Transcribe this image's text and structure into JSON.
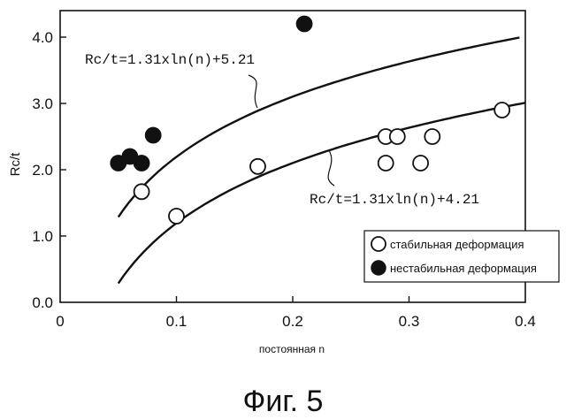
{
  "chart_data": {
    "type": "scatter",
    "xlabel": "постоянная n",
    "ylabel": "Rc/t",
    "xlim": [
      0,
      0.4
    ],
    "ylim": [
      0,
      4.4
    ],
    "x_ticks": [
      "0",
      "0.1",
      "0.2",
      "0.3",
      "0.4"
    ],
    "y_ticks": [
      "0.0",
      "1.0",
      "2.0",
      "3.0",
      "4.0"
    ],
    "curves": [
      {
        "label": "Rc/t=1.31xln(n)+5.21",
        "a": 1.31,
        "b": 5.21,
        "x_range": [
          0.05,
          0.395
        ]
      },
      {
        "label": "Rc/t=1.31xln(n)+4.21",
        "a": 1.31,
        "b": 4.21,
        "x_range": [
          0.05,
          0.4
        ]
      }
    ],
    "series": [
      {
        "name": "стабильная деформация",
        "marker": "open-circle",
        "points": [
          [
            0.07,
            1.67
          ],
          [
            0.1,
            1.3
          ],
          [
            0.17,
            2.05
          ],
          [
            0.28,
            2.1
          ],
          [
            0.28,
            2.5
          ],
          [
            0.29,
            2.5
          ],
          [
            0.31,
            2.1
          ],
          [
            0.32,
            2.5
          ],
          [
            0.38,
            2.9
          ]
        ]
      },
      {
        "name": "нестабильная деформация",
        "marker": "filled-circle",
        "points": [
          [
            0.05,
            2.1
          ],
          [
            0.06,
            2.2
          ],
          [
            0.07,
            2.1
          ],
          [
            0.08,
            2.52
          ],
          [
            0.21,
            4.2
          ]
        ]
      }
    ],
    "legend_position": "bottom-right",
    "grid": false
  },
  "caption": "Фиг. 5",
  "colors": {
    "ink": "#111111",
    "background": "#ffffff"
  }
}
